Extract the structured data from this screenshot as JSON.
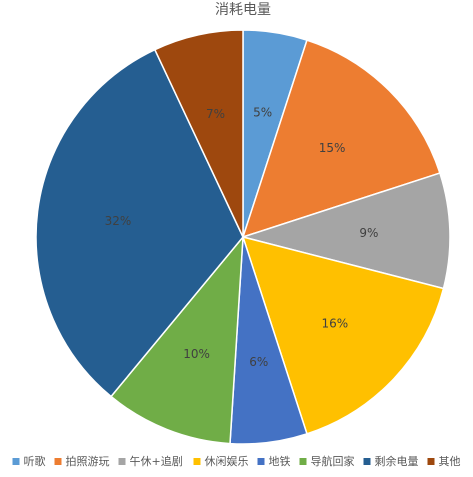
{
  "chart_data": {
    "type": "pie",
    "title": "消耗电量",
    "categories": [
      "听歌",
      "拍照游玩",
      "午休+追剧",
      "休闲娱乐",
      "地铁",
      "导航回家",
      "剩余电量",
      "其他"
    ],
    "values": [
      5,
      15,
      9,
      16,
      6,
      10,
      32,
      7
    ],
    "labels": [
      "5%",
      "15%",
      "9%",
      "16%",
      "6%",
      "10%",
      "32%",
      "7%"
    ],
    "colors": [
      "#5B9BD5",
      "#ED7D31",
      "#A5A5A5",
      "#FFC000",
      "#4472C4",
      "#70AD47",
      "#255E91",
      "#9E480E"
    ],
    "legend": "bottom",
    "start_angle_deg": 0,
    "direction": "clockwise"
  }
}
